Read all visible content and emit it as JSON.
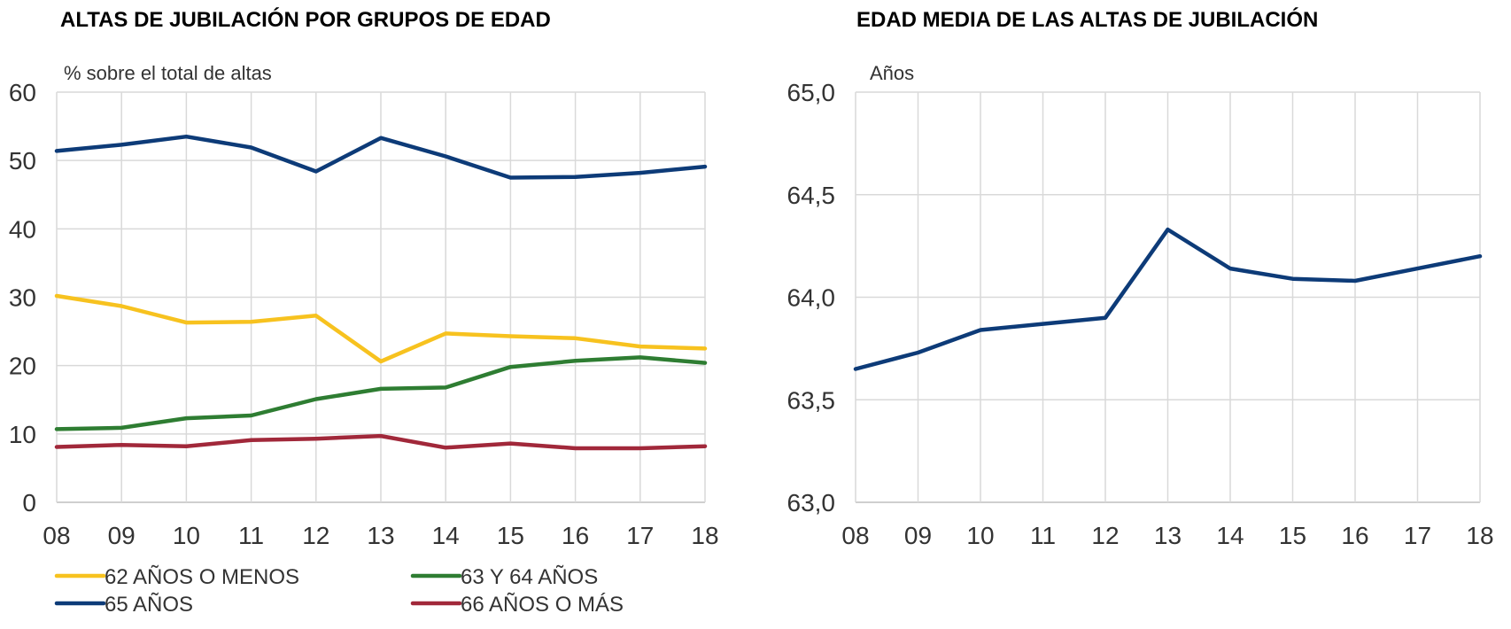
{
  "chart_data": [
    {
      "type": "line",
      "title": "ALTAS DE JUBILACIÓN POR GRUPOS DE EDAD",
      "ylabel": "% sobre el total de altas",
      "xlabel": "",
      "categories": [
        "08",
        "09",
        "10",
        "11",
        "12",
        "13",
        "14",
        "15",
        "16",
        "17",
        "18"
      ],
      "ylim": [
        0,
        60
      ],
      "yticks": [
        "0",
        "10",
        "20",
        "30",
        "40",
        "50",
        "60"
      ],
      "ytick_values": [
        0,
        10,
        20,
        30,
        40,
        50,
        60
      ],
      "grid": true,
      "legend_position": "bottom",
      "series": [
        {
          "name": "62 AÑOS O MENOS",
          "color": "#f7c21f",
          "values": [
            30.2,
            28.7,
            26.3,
            26.4,
            27.3,
            20.6,
            24.7,
            24.3,
            24.0,
            22.8,
            22.5
          ]
        },
        {
          "name": "63 Y 64 AÑOS",
          "color": "#2e7d32",
          "values": [
            10.7,
            10.9,
            12.3,
            12.7,
            15.1,
            16.6,
            16.8,
            19.8,
            20.7,
            21.2,
            20.4
          ]
        },
        {
          "name": "65 AÑOS",
          "color": "#0d3b78",
          "values": [
            51.4,
            52.3,
            53.5,
            51.9,
            48.4,
            53.3,
            50.6,
            47.5,
            47.6,
            48.2,
            49.1
          ]
        },
        {
          "name": "66 AÑOS O MÁS",
          "color": "#a1283a",
          "values": [
            8.1,
            8.4,
            8.2,
            9.1,
            9.3,
            9.7,
            8.0,
            8.6,
            7.9,
            7.9,
            8.2
          ]
        }
      ]
    },
    {
      "type": "line",
      "title": "EDAD MEDIA DE LAS ALTAS DE JUBILACIÓN",
      "ylabel": "Años",
      "xlabel": "",
      "categories": [
        "08",
        "09",
        "10",
        "11",
        "12",
        "13",
        "14",
        "15",
        "16",
        "17",
        "18"
      ],
      "ylim": [
        63.0,
        65.0
      ],
      "yticks": [
        "63,0",
        "63,5",
        "64,0",
        "64,5",
        "65,0"
      ],
      "ytick_values": [
        63.0,
        63.5,
        64.0,
        64.5,
        65.0
      ],
      "grid": true,
      "series": [
        {
          "name": "Edad media",
          "color": "#0d3b78",
          "values": [
            63.65,
            63.73,
            63.84,
            63.87,
            63.9,
            64.33,
            64.14,
            64.09,
            64.08,
            64.14,
            64.2
          ]
        }
      ]
    }
  ]
}
